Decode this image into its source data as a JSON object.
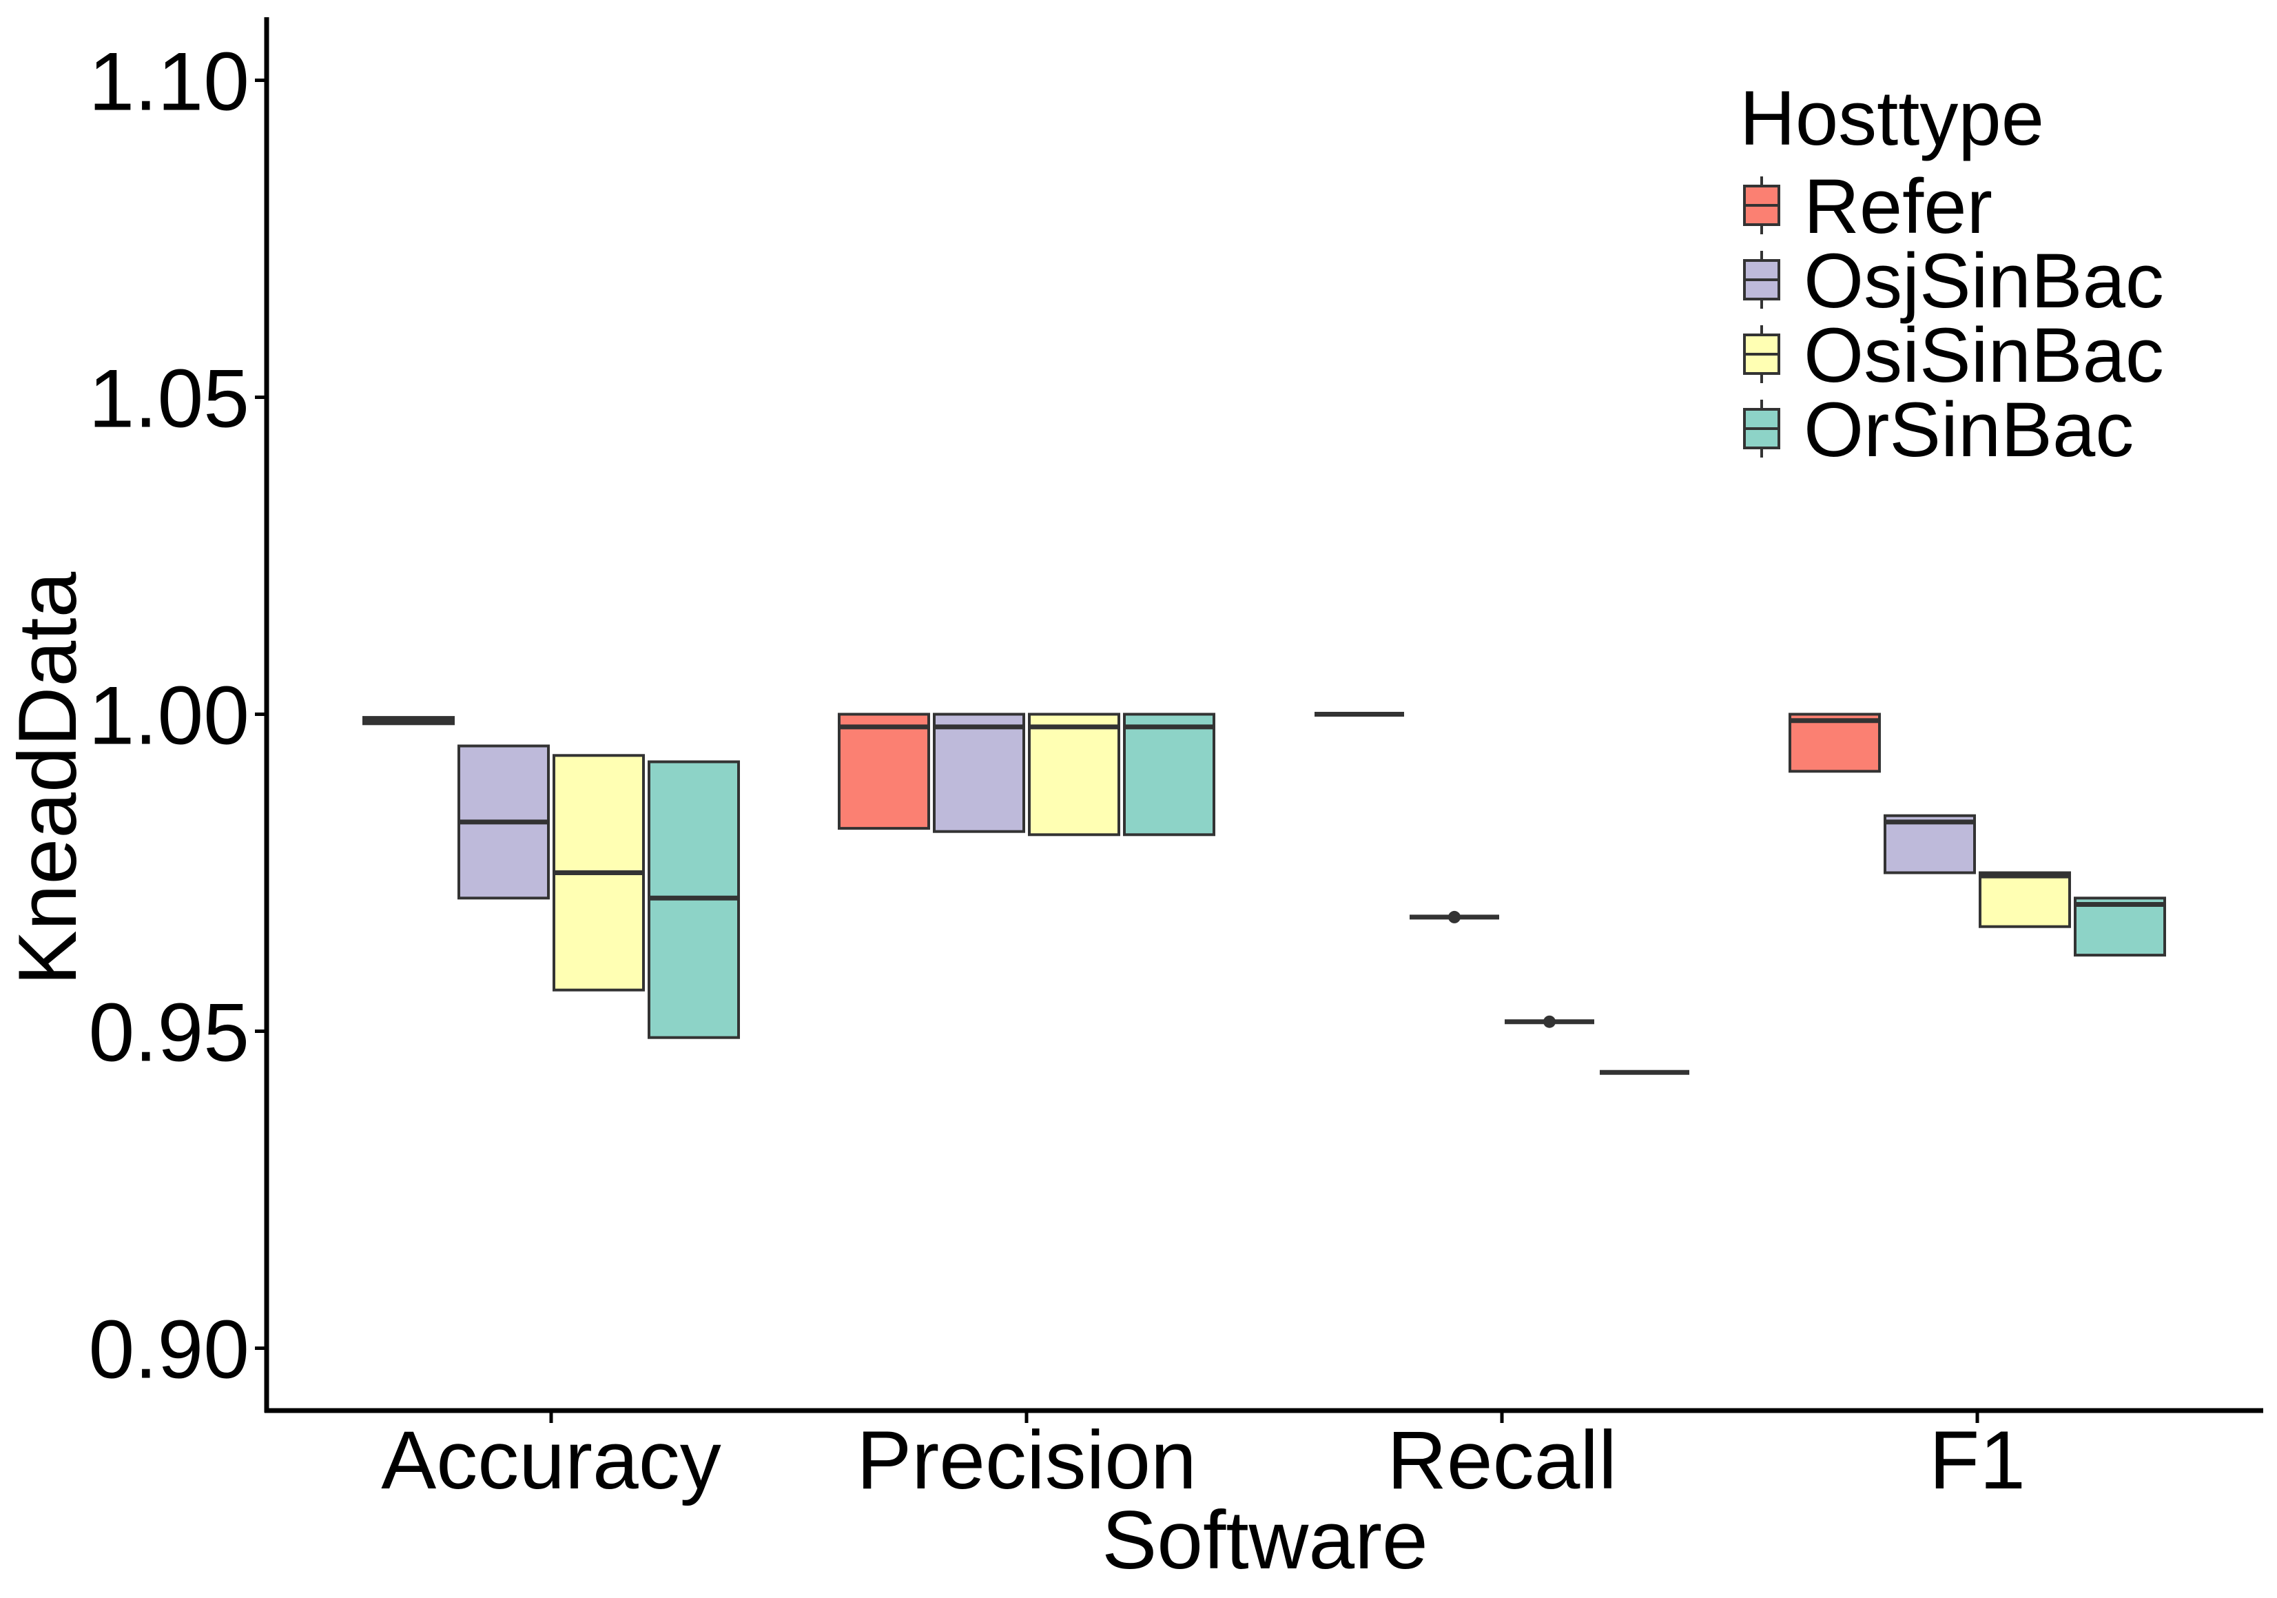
{
  "chart_data": {
    "type": "box",
    "xlabel": "Software",
    "ylabel": "KneadData",
    "ylim": [
      0.89,
      1.11
    ],
    "yticks": [
      "0.90",
      "0.95",
      "1.00",
      "1.05",
      "1.10"
    ],
    "categories": [
      "Accuracy",
      "Precision",
      "Recall",
      "F1"
    ],
    "legend": {
      "title": "Hosttype",
      "position": "top-right"
    },
    "grid": false,
    "series": [
      {
        "name": "Refer",
        "color": "#FB8072",
        "boxes": [
          {
            "q1": 0.9985,
            "median": 0.999,
            "q3": 0.9995
          },
          {
            "q1": 0.982,
            "median": 0.998,
            "q3": 1.0
          },
          {
            "q1": 1.0,
            "median": 1.0,
            "q3": 1.0
          },
          {
            "q1": 0.991,
            "median": 0.999,
            "q3": 1.0
          }
        ]
      },
      {
        "name": "OsjSinBac",
        "color": "#BEBADA",
        "boxes": [
          {
            "q1": 0.971,
            "median": 0.983,
            "q3": 0.995
          },
          {
            "q1": 0.9815,
            "median": 0.998,
            "q3": 1.0
          },
          {
            "q1": 0.968,
            "median": 0.968,
            "q3": 0.968,
            "outlier": 0.968
          },
          {
            "q1": 0.975,
            "median": 0.983,
            "q3": 0.984
          }
        ]
      },
      {
        "name": "OsiSinBac",
        "color": "#FFFFB3",
        "boxes": [
          {
            "q1": 0.9565,
            "median": 0.975,
            "q3": 0.9935
          },
          {
            "q1": 0.981,
            "median": 0.998,
            "q3": 1.0
          },
          {
            "q1": 0.9515,
            "median": 0.9515,
            "q3": 0.9515,
            "outlier": 0.9515
          },
          {
            "q1": 0.9665,
            "median": 0.9745,
            "q3": 0.975
          }
        ]
      },
      {
        "name": "OrSinBac",
        "color": "#8DD3C7",
        "boxes": [
          {
            "q1": 0.949,
            "median": 0.971,
            "q3": 0.9925
          },
          {
            "q1": 0.981,
            "median": 0.998,
            "q3": 1.0
          },
          {
            "q1": 0.9435,
            "median": 0.9435,
            "q3": 0.9435
          },
          {
            "q1": 0.962,
            "median": 0.97,
            "q3": 0.971
          }
        ]
      }
    ]
  }
}
